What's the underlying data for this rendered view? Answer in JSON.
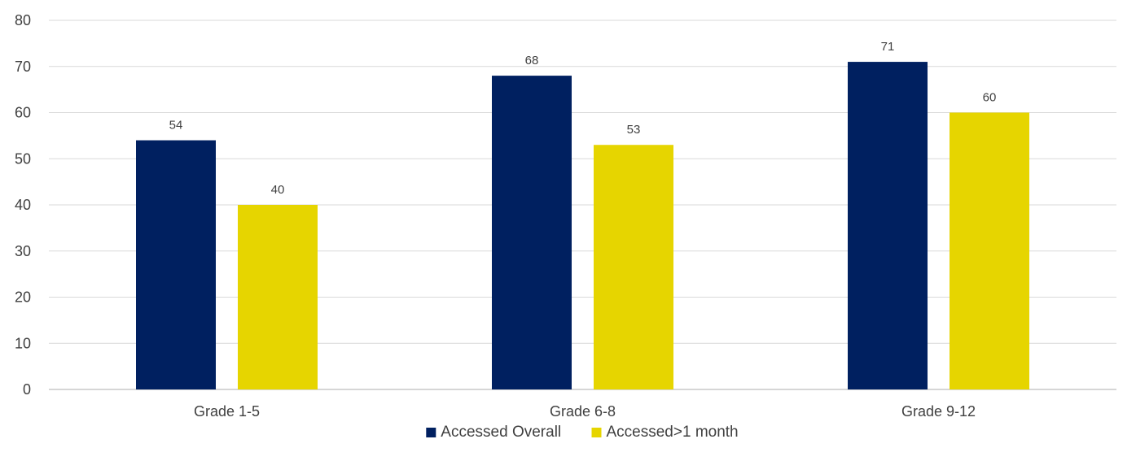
{
  "chart_data": {
    "type": "bar",
    "categories": [
      "Grade 1-5",
      "Grade 6-8",
      "Grade 9-12"
    ],
    "series": [
      {
        "name": "Accessed Overall",
        "values": [
          54,
          68,
          71
        ],
        "color": "#002060"
      },
      {
        "name": "Accessed>1 month",
        "values": [
          40,
          53,
          60
        ],
        "color": "#E6D500"
      }
    ],
    "ylim": [
      0,
      80
    ],
    "yticks": [
      0,
      10,
      20,
      30,
      40,
      50,
      60,
      70,
      80
    ],
    "grid": true,
    "legend": "bottom",
    "title": "",
    "xlabel": "",
    "ylabel": ""
  }
}
